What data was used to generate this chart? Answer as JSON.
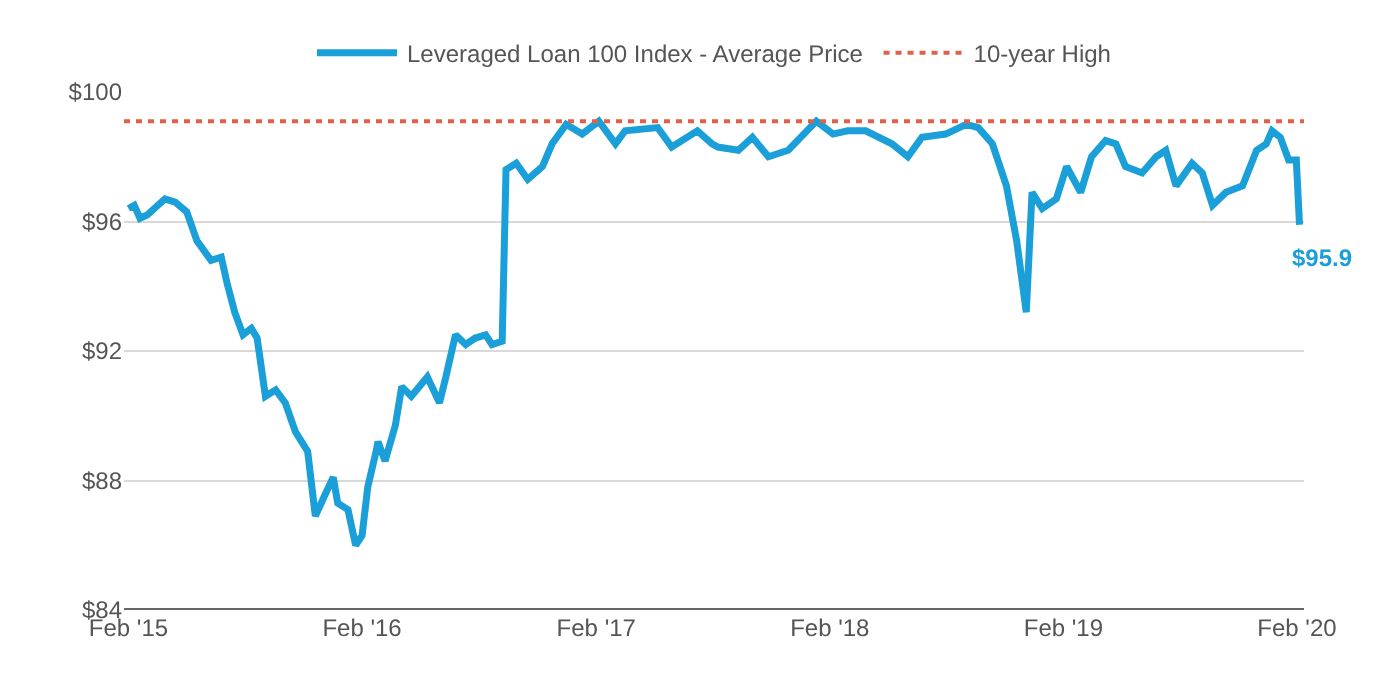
{
  "chart_data": {
    "type": "line",
    "legend": "top",
    "grid": "y",
    "marker": "none",
    "line_style": "solid",
    "xlim": [
      "2015-01-25",
      "2020-02-12"
    ],
    "xticks": [
      {
        "value": "2015-02-01",
        "label": "Feb '15"
      },
      {
        "value": "2016-02-01",
        "label": "Feb '16"
      },
      {
        "value": "2017-02-01",
        "label": "Feb '17"
      },
      {
        "value": "2018-02-01",
        "label": "Feb '18"
      },
      {
        "value": "2019-02-01",
        "label": "Feb '19"
      },
      {
        "value": "2020-02-01",
        "label": "Feb '20"
      }
    ],
    "ylim": [
      84,
      100
    ],
    "yticks": [
      {
        "value": 84,
        "label": "$84"
      },
      {
        "value": 88,
        "label": "$88"
      },
      {
        "value": 92,
        "label": "$92"
      },
      {
        "value": 96,
        "label": "$96"
      },
      {
        "value": 100,
        "label": "$100"
      }
    ],
    "series": [
      {
        "name": "Leveraged Loan 100 Index - Average Price",
        "color": "#1a9fd8",
        "x": [
          "2015-02-01",
          "2015-02-10",
          "2015-02-19",
          "2015-03-02",
          "2015-03-30",
          "2015-04-15",
          "2015-05-03",
          "2015-05-19",
          "2015-06-10",
          "2015-06-26",
          "2015-07-05",
          "2015-07-17",
          "2015-07-30",
          "2015-08-12",
          "2015-08-21",
          "2015-09-03",
          "2015-09-19",
          "2015-10-04",
          "2015-10-20",
          "2015-11-08",
          "2015-11-20",
          "2015-12-06",
          "2015-12-18",
          "2015-12-25",
          "2016-01-10",
          "2016-01-22",
          "2016-02-01",
          "2016-02-10",
          "2016-02-23",
          "2016-02-26",
          "2016-03-08",
          "2016-03-24",
          "2016-04-03",
          "2016-04-18",
          "2016-05-13",
          "2016-06-01",
          "2016-06-11",
          "2016-06-26",
          "2016-07-12",
          "2016-07-27",
          "2016-08-12",
          "2016-08-22",
          "2016-09-07",
          "2016-09-13",
          "2016-09-29",
          "2016-10-17",
          "2016-11-09",
          "2016-11-24",
          "2016-12-16",
          "2017-01-10",
          "2017-02-05",
          "2017-03-03",
          "2017-03-18",
          "2017-05-08",
          "2017-05-30",
          "2017-07-09",
          "2017-08-01",
          "2017-08-10",
          "2017-09-11",
          "2017-10-03",
          "2017-10-28",
          "2017-11-28",
          "2018-01-11",
          "2018-02-06",
          "2018-03-01",
          "2018-03-29",
          "2018-05-09",
          "2018-06-03",
          "2018-06-25",
          "2018-08-01",
          "2018-09-02",
          "2018-09-21",
          "2018-10-13",
          "2018-11-04",
          "2018-11-20",
          "2018-12-05",
          "2018-12-14",
          "2018-12-30",
          "2019-01-21",
          "2019-02-06",
          "2019-02-28",
          "2019-03-17",
          "2019-04-08",
          "2019-04-24",
          "2019-05-09",
          "2019-06-04",
          "2019-06-26",
          "2019-07-11",
          "2019-07-27",
          "2019-08-21",
          "2019-09-06",
          "2019-09-22",
          "2019-10-13",
          "2019-11-08",
          "2019-11-30",
          "2019-12-15",
          "2019-12-24",
          "2020-01-06",
          "2020-01-19",
          "2020-01-31",
          "2020-02-05"
        ],
        "values": [
          96.4,
          96.5,
          96.1,
          96.2,
          96.7,
          96.6,
          96.3,
          95.4,
          94.8,
          94.9,
          94.1,
          93.2,
          92.5,
          92.7,
          92.4,
          90.6,
          90.8,
          90.4,
          89.5,
          88.9,
          86.9,
          87.6,
          88.1,
          87.3,
          87.1,
          86.0,
          86.3,
          87.8,
          88.9,
          89.2,
          88.6,
          89.7,
          90.9,
          90.6,
          91.2,
          90.4,
          91.2,
          92.5,
          92.2,
          92.4,
          92.5,
          92.2,
          92.3,
          97.6,
          97.8,
          97.3,
          97.7,
          98.4,
          99.0,
          98.7,
          99.1,
          98.4,
          98.8,
          98.9,
          98.3,
          98.8,
          98.4,
          98.3,
          98.2,
          98.6,
          98.0,
          98.2,
          99.1,
          98.7,
          98.8,
          98.8,
          98.4,
          98.0,
          98.6,
          98.7,
          99.0,
          98.9,
          98.4,
          97.1,
          95.4,
          93.2,
          96.9,
          96.4,
          96.7,
          97.7,
          96.9,
          98.0,
          98.5,
          98.4,
          97.7,
          97.5,
          98.0,
          98.2,
          97.1,
          97.8,
          97.5,
          96.5,
          96.9,
          97.1,
          98.2,
          98.4,
          98.8,
          98.6,
          97.9,
          97.9,
          95.9
        ]
      }
    ],
    "ref_lines": [
      {
        "axis": "y",
        "value": 99.1,
        "label": "10-year High",
        "color": "#e0604a",
        "line_style": "dotted"
      }
    ],
    "annotations": [
      {
        "text": "$95.9",
        "x": "2020-02-05",
        "y": 95.9
      }
    ]
  }
}
